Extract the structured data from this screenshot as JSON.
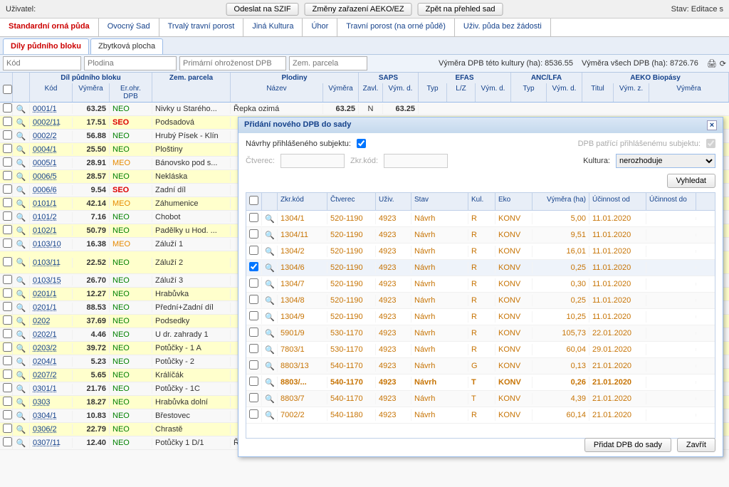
{
  "topbar": {
    "user_label": "Uživatel:",
    "btn1": "Odeslat na SZIF",
    "btn2": "Změny zařazení AEKO/EZ",
    "btn3": "Zpět na přehled sad",
    "stav": "Stav: Editace s"
  },
  "tabs1": [
    "Standardní orná půda",
    "Ovocný Sad",
    "Trvalý travní porost",
    "Jiná Kultura",
    "Úhor",
    "Travní porost (na orné půdě)",
    "Uživ. půda bez žádosti"
  ],
  "tabs2": [
    "Díly půdního bloku",
    "Zbytková plocha"
  ],
  "filters": {
    "kod": "Kód",
    "plodina": "Plodina",
    "prim": "Primární ohroženost DPB",
    "zem": "Zem. parcela",
    "stat1": "Výměra DPB této kultury (ha): 8536.55",
    "stat2": "Výměra všech DPB (ha): 8726.76"
  },
  "head": {
    "g1": "Díl půdního bloku",
    "g2": "Zem. parcela",
    "g3": "Plodiny",
    "g4": "SAPS",
    "g5": "EFAS",
    "g6": "ANC/LFA",
    "g7": "AEKO Biopásy",
    "kod": "Kód",
    "vym": "Výměra",
    "er": "Er.ohr. DPB",
    "nazev": "Název",
    "vymera": "Výměra",
    "zavl": "Zavl.",
    "vymd": "Vým. d.",
    "typ": "Typ",
    "lz": "L/Z",
    "titul": "Titul",
    "vymz": "Vým. z."
  },
  "rows": [
    {
      "hl": 0,
      "kod": "0001/1",
      "vym": "63.25",
      "er": "NEO",
      "zem": "Nivky u Starého...",
      "plod": "Řepka ozimá",
      "pvym": "63.25",
      "zavl": "N",
      "vymd": "63.25"
    },
    {
      "hl": 1,
      "kod": "0002/11",
      "vym": "17.51",
      "er": "SEO",
      "zem": "Podsadová"
    },
    {
      "hl": 0,
      "kod": "0002/2",
      "vym": "56.88",
      "er": "NEO",
      "zem": "Hrubý Písek - Klín"
    },
    {
      "hl": 1,
      "kod": "0004/1",
      "vym": "25.50",
      "er": "NEO",
      "zem": "Ploštiny"
    },
    {
      "hl": 0,
      "kod": "0005/1",
      "vym": "28.91",
      "er": "MEO",
      "zem": "Bánovsko pod s..."
    },
    {
      "hl": 1,
      "kod": "0006/5",
      "vym": "28.57",
      "er": "NEO",
      "zem": "Nekláska"
    },
    {
      "hl": 0,
      "kod": "0006/6",
      "vym": "9.54",
      "er": "SEO",
      "zem": "Zadní díl"
    },
    {
      "hl": 1,
      "kod": "0101/1",
      "vym": "42.14",
      "er": "MEO",
      "zem": "Záhumenice"
    },
    {
      "hl": 0,
      "kod": "0101/2",
      "vym": "7.16",
      "er": "NEO",
      "zem": "Chobot"
    },
    {
      "hl": 1,
      "kod": "0102/1",
      "vym": "50.79",
      "er": "NEO",
      "zem": "Padělky u Hod. ..."
    },
    {
      "hl": 0,
      "kod": "0103/10",
      "vym": "16.38",
      "er": "MEO",
      "zem": "Záluží 1"
    },
    {
      "hl": 1,
      "kod": "0103/11",
      "vym": "22.52",
      "er": "NEO",
      "zem": "Záluží 2",
      "tall": 1
    },
    {
      "hl": 0,
      "kod": "0103/15",
      "vym": "26.70",
      "er": "NEO",
      "zem": "Záluží 3"
    },
    {
      "hl": 1,
      "kod": "0201/1",
      "vym": "12.27",
      "er": "NEO",
      "zem": "Hrabůvka"
    },
    {
      "hl": 0,
      "kod": "0201/1",
      "vym": "88.53",
      "er": "NEO",
      "zem": "Přední+Zadní díl"
    },
    {
      "hl": 1,
      "kod": "0202",
      "vym": "37.69",
      "er": "NEO",
      "zem": "Podsedky"
    },
    {
      "hl": 0,
      "kod": "0202/1",
      "vym": "4.46",
      "er": "NEO",
      "zem": "U dr. zahrady 1"
    },
    {
      "hl": 1,
      "kod": "0203/2",
      "vym": "39.72",
      "er": "NEO",
      "zem": "Potůčky - 1 A"
    },
    {
      "hl": 0,
      "kod": "0204/1",
      "vym": "5.23",
      "er": "NEO",
      "zem": "Potůčky - 2"
    },
    {
      "hl": 1,
      "kod": "0207/2",
      "vym": "5.65",
      "er": "NEO",
      "zem": "Králíčák"
    },
    {
      "hl": 0,
      "kod": "0301/1",
      "vym": "21.76",
      "er": "NEO",
      "zem": "Potůčky - 1C"
    },
    {
      "hl": 1,
      "kod": "0303",
      "vym": "18.27",
      "er": "NEO",
      "zem": "Hrabůvka dolní"
    },
    {
      "hl": 0,
      "kod": "0304/1",
      "vym": "10.83",
      "er": "NEO",
      "zem": "Břestovec"
    },
    {
      "hl": 1,
      "kod": "0306/2",
      "vym": "22.79",
      "er": "NEO",
      "zem": "Chrastě"
    },
    {
      "hl": 0,
      "kod": "0307/11",
      "vym": "12.40",
      "er": "NEO",
      "zem": "Potůčky 1 D/1",
      "plod": "Řepka ozimá",
      "pvym": "12.40",
      "zavl": "N",
      "vymd": "12.40"
    }
  ],
  "modal": {
    "title": "Přidání nového DPB do sady",
    "navrhy": "Návrhy přihlášeného subjektu:",
    "patrici": "DPB patřící přihlášenému subjektu:",
    "ctverec": "Čtverec:",
    "zkr": "Zkr.kód:",
    "kultura": "Kultura:",
    "kultura_val": "nerozhoduje",
    "vyhledat": "Vyhledat",
    "cols": {
      "zkr": "Zkr.kód",
      "ctv": "Čtverec",
      "uziv": "Uživ.",
      "stav": "Stav",
      "kul": "Kul.",
      "eko": "Eko",
      "vym": "Výměra (ha)",
      "od": "Účinnost od",
      "do": "Účinnost do"
    },
    "rows": [
      {
        "zkr": "1304/1",
        "ctv": "520-1190",
        "uziv": "4923",
        "stav": "Návrh",
        "kul": "R",
        "eko": "KONV",
        "vym": "5,00",
        "od": "11.01.2020"
      },
      {
        "zkr": "1304/11",
        "ctv": "520-1190",
        "uziv": "4923",
        "stav": "Návrh",
        "kul": "R",
        "eko": "KONV",
        "vym": "9,51",
        "od": "11.01.2020"
      },
      {
        "zkr": "1304/2",
        "ctv": "520-1190",
        "uziv": "4923",
        "stav": "Návrh",
        "kul": "R",
        "eko": "KONV",
        "vym": "16,01",
        "od": "11.01.2020"
      },
      {
        "zkr": "1304/6",
        "ctv": "520-1190",
        "uziv": "4923",
        "stav": "Návrh",
        "kul": "R",
        "eko": "KONV",
        "vym": "0,25",
        "od": "11.01.2020",
        "ck": 1
      },
      {
        "zkr": "1304/7",
        "ctv": "520-1190",
        "uziv": "4923",
        "stav": "Návrh",
        "kul": "R",
        "eko": "KONV",
        "vym": "0,30",
        "od": "11.01.2020"
      },
      {
        "zkr": "1304/8",
        "ctv": "520-1190",
        "uziv": "4923",
        "stav": "Návrh",
        "kul": "R",
        "eko": "KONV",
        "vym": "0,25",
        "od": "11.01.2020"
      },
      {
        "zkr": "1304/9",
        "ctv": "520-1190",
        "uziv": "4923",
        "stav": "Návrh",
        "kul": "R",
        "eko": "KONV",
        "vym": "10,25",
        "od": "11.01.2020"
      },
      {
        "zkr": "5901/9",
        "ctv": "530-1170",
        "uziv": "4923",
        "stav": "Návrh",
        "kul": "R",
        "eko": "KONV",
        "vym": "105,73",
        "od": "22.01.2020"
      },
      {
        "zkr": "7803/1",
        "ctv": "530-1170",
        "uziv": "4923",
        "stav": "Návrh",
        "kul": "R",
        "eko": "KONV",
        "vym": "60,04",
        "od": "29.01.2020"
      },
      {
        "zkr": "8803/13",
        "ctv": "540-1170",
        "uziv": "4923",
        "stav": "Návrh",
        "kul": "G",
        "eko": "KONV",
        "vym": "0,13",
        "od": "21.01.2020"
      },
      {
        "zkr": "8803/...",
        "ctv": "540-1170",
        "uziv": "4923",
        "stav": "Návrh",
        "kul": "T",
        "eko": "KONV",
        "vym": "0,26",
        "od": "21.01.2020",
        "bold": 1
      },
      {
        "zkr": "8803/7",
        "ctv": "540-1170",
        "uziv": "4923",
        "stav": "Návrh",
        "kul": "T",
        "eko": "KONV",
        "vym": "4,39",
        "od": "21.01.2020"
      },
      {
        "zkr": "7002/2",
        "ctv": "540-1180",
        "uziv": "4923",
        "stav": "Návrh",
        "kul": "R",
        "eko": "KONV",
        "vym": "60,14",
        "od": "21.01.2020"
      }
    ],
    "pridat": "Přidat DPB do sady",
    "zavrit": "Zavřít"
  }
}
